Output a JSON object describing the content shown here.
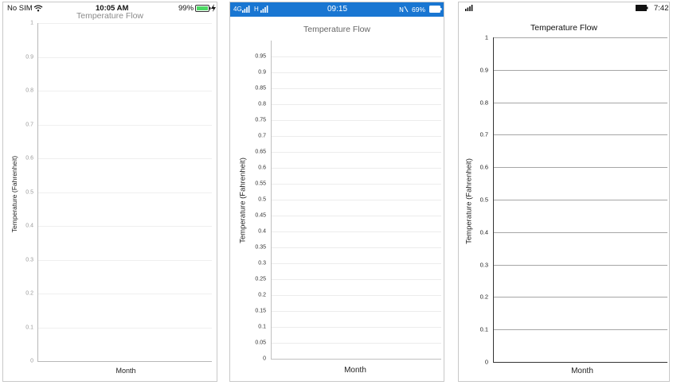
{
  "ios": {
    "status": {
      "carrier": "No SIM",
      "time": "10:05 AM",
      "battery": "99%"
    },
    "chart_data": {
      "type": "line",
      "title": "Temperature Flow",
      "xlabel": "Month",
      "ylabel": "Temperature (Fahrenheit)",
      "ylim": [
        0,
        1
      ],
      "yticks": [
        "0",
        "0.1",
        "0.2",
        "0.3",
        "0.4",
        "0.5",
        "0.6",
        "0.7",
        "0.8",
        "0.9",
        "1"
      ],
      "series": []
    }
  },
  "android": {
    "status": {
      "network_4g": "4G",
      "network_h": "H",
      "time": "09:15",
      "battery": "69%"
    },
    "chart_data": {
      "type": "line",
      "title": "Temperature Flow",
      "xlabel": "Month",
      "ylabel": "Temperature (Fahrenheit)",
      "ylim": [
        0,
        1
      ],
      "yticks": [
        "0",
        "0.05",
        "0.1",
        "0.15",
        "0.2",
        "0.25",
        "0.3",
        "0.35",
        "0.4",
        "0.45",
        "0.5",
        "0.55",
        "0.6",
        "0.65",
        "0.7",
        "0.75",
        "0.8",
        "0.85",
        "0.9",
        "0.95"
      ],
      "series": []
    }
  },
  "uwp": {
    "status": {
      "time": "7:42"
    },
    "chart_data": {
      "type": "line",
      "title": "Temperature Flow",
      "xlabel": "Month",
      "ylabel": "Temperature (Fahrenheit)",
      "ylim": [
        0,
        1
      ],
      "yticks": [
        "0",
        "0.1",
        "0.2",
        "0.3",
        "0.4",
        "0.5",
        "0.6",
        "0.7",
        "0.8",
        "0.9",
        "1"
      ],
      "series": []
    }
  },
  "colors": {
    "android_statusbar": "#1976d2",
    "ios_battery": "#4cd964"
  }
}
